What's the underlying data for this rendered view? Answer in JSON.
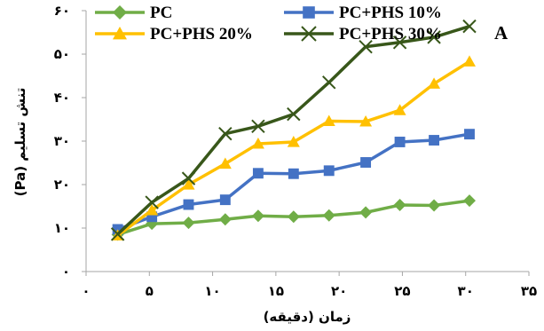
{
  "chart_data": {
    "type": "line",
    "panel_label": "A",
    "xlabel": "زمان (دقیقه)",
    "ylabel": "تنش تسلیم  (Pa)",
    "xlim": [
      0,
      35
    ],
    "ylim": [
      0,
      60
    ],
    "x_ticks": [
      0,
      5,
      10,
      15,
      20,
      25,
      30,
      35
    ],
    "x_tick_labels": [
      "۰",
      "۵",
      "۱۰",
      "۱۵",
      "۲۰",
      "۲۵",
      "۳۰",
      "۳۵"
    ],
    "y_ticks": [
      0,
      10,
      20,
      30,
      40,
      50,
      60
    ],
    "y_tick_labels": [
      "۰",
      "۱۰",
      "۲۰",
      "۳۰",
      "۴۰",
      "۵۰",
      "۶۰"
    ],
    "grid": false,
    "legend_position": "top",
    "series": [
      {
        "name": "PC",
        "color": "#70ad47",
        "marker": "diamond",
        "x": [
          2.5,
          5.2,
          8.1,
          11.0,
          13.6,
          16.4,
          19.2,
          22.1,
          24.8,
          27.5,
          30.3
        ],
        "y": [
          8.5,
          11,
          11.2,
          12,
          12.8,
          12.6,
          12.9,
          13.6,
          15.3,
          15.2,
          16.3
        ]
      },
      {
        "name": "PC+PHS 10%",
        "color": "#4472c4",
        "marker": "square",
        "x": [
          2.5,
          5.2,
          8.1,
          11.0,
          13.6,
          16.4,
          19.2,
          22.1,
          24.8,
          27.5,
          30.3
        ],
        "y": [
          9.7,
          12.6,
          15.4,
          16.5,
          22.6,
          22.5,
          23.2,
          25.1,
          29.8,
          30.2,
          31.6
        ]
      },
      {
        "name": "PC+PHS 20%",
        "color": "#ffc000",
        "marker": "triangle",
        "x": [
          2.5,
          5.2,
          8.1,
          11.0,
          13.6,
          16.4,
          19.2,
          22.1,
          24.8,
          27.5,
          30.3
        ],
        "y": [
          8.3,
          14.1,
          20,
          24.8,
          29.4,
          29.8,
          34.6,
          34.5,
          37.1,
          43.2,
          48.3
        ]
      },
      {
        "name": "PC+PHS 30%",
        "color": "#38571a",
        "marker": "x",
        "x": [
          2.5,
          5.2,
          8.1,
          11.0,
          13.6,
          16.4,
          19.2,
          22.1,
          24.8,
          27.5,
          30.3
        ],
        "y": [
          8.6,
          15.9,
          21.4,
          31.7,
          33.4,
          36.2,
          43.5,
          51.7,
          52.7,
          53.9,
          56.4
        ]
      }
    ]
  }
}
